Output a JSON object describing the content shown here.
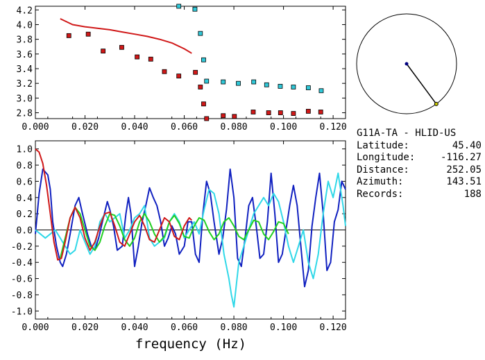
{
  "station": {
    "title": "G11A-TA - HLID-US",
    "rows": [
      {
        "label": "Latitude:",
        "value": "45.40"
      },
      {
        "label": "Longitude:",
        "value": "-116.27"
      },
      {
        "label": "Distance:",
        "value": "252.05"
      },
      {
        "label": "Azimuth:",
        "value": "143.51"
      },
      {
        "label": "Records:",
        "value": "188"
      }
    ]
  },
  "compass": {
    "azimuth_deg": 143.51,
    "dot_color": "#000080",
    "tip_color": "#c8c800"
  },
  "chart_data": [
    {
      "type": "scatter",
      "xlim": [
        0.0,
        0.125
      ],
      "ylim": [
        2.72,
        4.25
      ],
      "x_ticks": [
        "0.000",
        "0.020",
        "0.040",
        "0.060",
        "0.080",
        "0.100",
        "0.120"
      ],
      "y_ticks": [
        "2.8",
        "3.0",
        "3.2",
        "3.4",
        "3.6",
        "3.8",
        "4.0",
        "4.2"
      ],
      "series": [
        {
          "kind": "points",
          "color": "#d01818",
          "x": [
            0.0135,
            0.0213,
            0.0273,
            0.0348,
            0.041,
            0.0465,
            0.052,
            0.0578,
            0.0645,
            0.0665,
            0.0678,
            0.069,
            0.0757,
            0.0802,
            0.0878,
            0.094,
            0.0988,
            0.104,
            0.11,
            0.115
          ],
          "y": [
            3.85,
            3.87,
            3.64,
            3.69,
            3.56,
            3.53,
            3.36,
            3.3,
            3.35,
            3.15,
            2.92,
            2.72,
            2.76,
            2.75,
            2.81,
            2.8,
            2.8,
            2.79,
            2.82,
            2.81
          ]
        },
        {
          "kind": "points",
          "color": "#30c8d8",
          "x": [
            0.0578,
            0.0643,
            0.0665,
            0.0678,
            0.069,
            0.0757,
            0.0818,
            0.088,
            0.0932,
            0.0987,
            0.104,
            0.11,
            0.1152
          ],
          "y": [
            4.25,
            4.21,
            3.88,
            3.52,
            3.23,
            3.22,
            3.2,
            3.22,
            3.18,
            3.16,
            3.15,
            3.14,
            3.1
          ]
        },
        {
          "kind": "line",
          "color": "#d01818",
          "x": [
            0.01,
            0.015,
            0.02,
            0.025,
            0.03,
            0.035,
            0.04,
            0.045,
            0.05,
            0.055,
            0.06,
            0.063
          ],
          "y": [
            4.08,
            4.0,
            3.97,
            3.95,
            3.93,
            3.9,
            3.87,
            3.84,
            3.8,
            3.75,
            3.67,
            3.61
          ]
        }
      ]
    },
    {
      "type": "line",
      "xlim": [
        0.0,
        0.125
      ],
      "ylim": [
        -1.1,
        1.1
      ],
      "xlabel": "frequency (Hz)",
      "x_ticks": [
        "0.000",
        "0.020",
        "0.040",
        "0.060",
        "0.080",
        "0.100",
        "0.120"
      ],
      "y_ticks": [
        "1.0",
        "0.8",
        "0.6",
        "0.4",
        "0.2",
        "0.0",
        "-0.2",
        "-0.4",
        "-0.6",
        "-0.8",
        "-1.0"
      ],
      "series": [
        {
          "color": "#1020c0",
          "x": [
            0.0,
            0.0015,
            0.003,
            0.005,
            0.006,
            0.007,
            0.0085,
            0.01,
            0.011,
            0.0125,
            0.014,
            0.016,
            0.0175,
            0.019,
            0.021,
            0.0225,
            0.024,
            0.0255,
            0.027,
            0.029,
            0.03,
            0.0315,
            0.033,
            0.035,
            0.0365,
            0.0375,
            0.0385,
            0.04,
            0.0415,
            0.043,
            0.0445,
            0.046,
            0.0475,
            0.049,
            0.0505,
            0.052,
            0.0535,
            0.055,
            0.0565,
            0.058,
            0.06,
            0.0615,
            0.063,
            0.0645,
            0.066,
            0.0675,
            0.069,
            0.0705,
            0.072,
            0.074,
            0.0755,
            0.077,
            0.0785,
            0.08,
            0.0815,
            0.083,
            0.0845,
            0.086,
            0.0875,
            0.089,
            0.0905,
            0.092,
            0.0935,
            0.095,
            0.0965,
            0.098,
            0.0995,
            0.101,
            0.1025,
            0.104,
            0.1055,
            0.107,
            0.1085,
            0.11,
            0.1115,
            0.113,
            0.1145,
            0.116,
            0.1175,
            0.119,
            0.1205,
            0.122,
            0.1235,
            0.125
          ],
          "y": [
            -0.05,
            0.45,
            0.75,
            0.68,
            0.5,
            0.1,
            -0.2,
            -0.4,
            -0.45,
            -0.3,
            -0.05,
            0.3,
            0.4,
            0.2,
            -0.05,
            -0.2,
            -0.25,
            -0.1,
            0.1,
            0.35,
            0.25,
            0.05,
            -0.25,
            -0.2,
            0.2,
            0.4,
            0.2,
            -0.45,
            -0.2,
            0.1,
            0.3,
            0.52,
            0.4,
            0.3,
            0.1,
            -0.2,
            -0.1,
            0.05,
            -0.05,
            -0.3,
            -0.2,
            0.1,
            0.1,
            -0.3,
            -0.4,
            0.2,
            0.6,
            0.45,
            0.1,
            -0.3,
            -0.1,
            0.25,
            0.75,
            0.4,
            -0.35,
            -0.45,
            -0.1,
            0.3,
            0.4,
            0.05,
            -0.35,
            -0.3,
            0.1,
            0.7,
            0.2,
            -0.4,
            -0.3,
            0.0,
            0.3,
            0.55,
            0.3,
            -0.2,
            -0.7,
            -0.5,
            0.05,
            0.4,
            0.7,
            0.2,
            -0.5,
            -0.4,
            0.1,
            0.25,
            0.6,
            0.5
          ]
        },
        {
          "color": "#30d8e8",
          "x": [
            0.0,
            0.002,
            0.004,
            0.006,
            0.008,
            0.01,
            0.012,
            0.014,
            0.016,
            0.018,
            0.02,
            0.022,
            0.024,
            0.026,
            0.028,
            0.03,
            0.032,
            0.034,
            0.036,
            0.038,
            0.04,
            0.042,
            0.044,
            0.046,
            0.048,
            0.05,
            0.052,
            0.054,
            0.056,
            0.058,
            0.06,
            0.062,
            0.064,
            0.066,
            0.068,
            0.07,
            0.072,
            0.074,
            0.076,
            0.078,
            0.079,
            0.08,
            0.082,
            0.084,
            0.086,
            0.088,
            0.09,
            0.092,
            0.094,
            0.096,
            0.098,
            0.1,
            0.102,
            0.104,
            0.106,
            0.108,
            0.11,
            0.112,
            0.114,
            0.116,
            0.118,
            0.12,
            0.122,
            0.124,
            0.125
          ],
          "y": [
            0.0,
            -0.05,
            -0.1,
            -0.05,
            0.0,
            -0.1,
            -0.2,
            -0.3,
            -0.25,
            0.0,
            -0.15,
            -0.3,
            -0.2,
            0.1,
            0.2,
            0.1,
            0.15,
            0.2,
            -0.1,
            0.0,
            0.15,
            0.2,
            0.3,
            -0.1,
            -0.2,
            -0.15,
            -0.1,
            0.1,
            0.2,
            0.1,
            -0.1,
            0.0,
            0.1,
            -0.05,
            0.25,
            0.5,
            0.45,
            0.2,
            -0.3,
            -0.6,
            -0.8,
            -0.95,
            -0.4,
            -0.2,
            0.0,
            0.2,
            0.3,
            0.4,
            0.3,
            0.45,
            0.35,
            0.1,
            -0.2,
            -0.4,
            -0.2,
            0.0,
            -0.4,
            -0.6,
            -0.3,
            0.2,
            0.6,
            0.4,
            0.7,
            0.3,
            0.05
          ]
        },
        {
          "color": "#20d020",
          "x": [
            0.01,
            0.012,
            0.014,
            0.016,
            0.018,
            0.02,
            0.022,
            0.024,
            0.026,
            0.028,
            0.03,
            0.032,
            0.034,
            0.036,
            0.038,
            0.04,
            0.042,
            0.044,
            0.046,
            0.048,
            0.05,
            0.052,
            0.054,
            0.056,
            0.058,
            0.06,
            0.062,
            0.064,
            0.066,
            0.068,
            0.07,
            0.072,
            0.074,
            0.076,
            0.078,
            0.08,
            0.082,
            0.084,
            0.086,
            0.088,
            0.09,
            0.092,
            0.094,
            0.096,
            0.098,
            0.1,
            0.102
          ],
          "y": [
            -0.35,
            -0.1,
            0.15,
            0.28,
            0.2,
            0.0,
            -0.2,
            -0.25,
            -0.15,
            0.05,
            0.2,
            0.18,
            0.05,
            -0.12,
            -0.2,
            -0.1,
            0.1,
            0.2,
            0.1,
            -0.05,
            -0.15,
            -0.08,
            0.1,
            0.18,
            0.08,
            -0.08,
            -0.1,
            0.05,
            0.15,
            0.12,
            -0.02,
            -0.12,
            -0.05,
            0.1,
            0.15,
            0.05,
            -0.08,
            -0.12,
            0.0,
            0.12,
            0.1,
            -0.05,
            -0.12,
            -0.02,
            0.1,
            0.08,
            -0.05
          ]
        },
        {
          "color": "#d01818",
          "x": [
            0.0,
            0.0015,
            0.003,
            0.0045,
            0.006,
            0.0075,
            0.009,
            0.0105,
            0.012,
            0.014,
            0.016,
            0.018,
            0.02,
            0.022,
            0.024,
            0.026,
            0.028,
            0.03,
            0.032,
            0.034,
            0.036,
            0.038,
            0.04,
            0.042,
            0.044,
            0.046,
            0.048,
            0.05,
            0.052,
            0.054,
            0.056,
            0.058,
            0.06,
            0.062,
            0.063
          ],
          "y": [
            1.0,
            0.96,
            0.82,
            0.55,
            0.2,
            -0.15,
            -0.37,
            -0.35,
            -0.15,
            0.15,
            0.28,
            0.15,
            -0.1,
            -0.25,
            -0.15,
            0.05,
            0.2,
            0.22,
            0.05,
            -0.15,
            -0.2,
            -0.05,
            0.1,
            0.18,
            0.05,
            -0.12,
            -0.15,
            0.0,
            0.15,
            0.1,
            -0.08,
            -0.12,
            0.05,
            0.15,
            0.12
          ]
        }
      ]
    }
  ]
}
